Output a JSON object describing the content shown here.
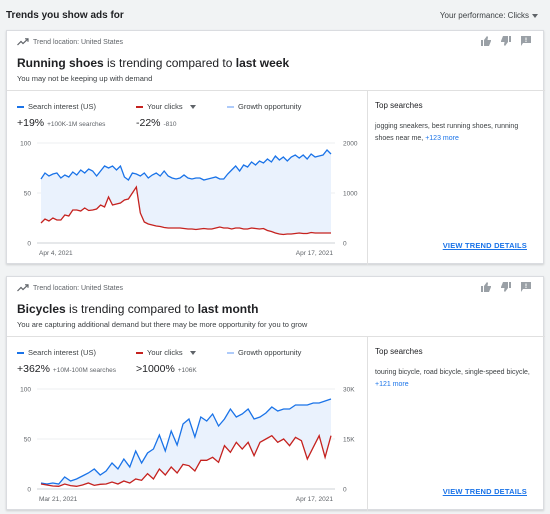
{
  "page": {
    "title": "Trends you show ads for",
    "performance_label": "Your performance: Clicks"
  },
  "colors": {
    "search": "#1a73e8",
    "clicks": "#c5221f",
    "growth": "#aecbfa",
    "growth_fill": "#eaf2fd"
  },
  "icons": [
    "trending-up-icon",
    "thumb-up-icon",
    "thumb-down-icon",
    "feedback-icon",
    "chevron-down-icon"
  ],
  "cards": [
    {
      "location": "Trend location: United States",
      "headline": {
        "subject": "Running shoes",
        "middle": " is trending compared to ",
        "period": "last week"
      },
      "subline": "You may not be keeping up with demand",
      "legend": {
        "search": "Search interest (US)",
        "clicks": "Your clicks",
        "growth": "Growth opportunity"
      },
      "metrics": {
        "search_value": "+19%",
        "search_detail": "+100K-1M searches",
        "clicks_value": "-22%",
        "clicks_detail": "-810"
      },
      "top_searches_title": "Top searches",
      "top_searches_text": "jogging sneakers, best running shoes, running shoes near me,",
      "top_searches_more": "+123 more",
      "details_label": "VIEW TREND DETAILS",
      "chart_data": {
        "type": "line",
        "x_start_label": "Apr 4, 2021",
        "x_end_label": "Apr 17, 2021",
        "left_ticks": [
          "100",
          "50",
          "0"
        ],
        "right_ticks": [
          "2000",
          "1000",
          "0"
        ],
        "ylim_left": [
          0,
          100
        ],
        "ylim_right": [
          0,
          2000
        ],
        "grid": true,
        "series": [
          {
            "name": "Search interest (US)",
            "axis": "left",
            "values": [
              64,
              70,
              67,
              69,
              70,
              65,
              68,
              66,
              71,
              68,
              73,
              70,
              74,
              72,
              67,
              72,
              77,
              75,
              77,
              73,
              77,
              66,
              63,
              70,
              69,
              67,
              70,
              65,
              68,
              70,
              67,
              72,
              67,
              65,
              64,
              65,
              68,
              65,
              64,
              65,
              65,
              63,
              64,
              65,
              66,
              64,
              64,
              69,
              73,
              77,
              72,
              78,
              76,
              81,
              78,
              82,
              80,
              84,
              81,
              87,
              83,
              86,
              82,
              86,
              88,
              85,
              88,
              84,
              89,
              86,
              87,
              88,
              93,
              89
            ]
          },
          {
            "name": "Your clicks",
            "axis": "right",
            "values": [
              400,
              480,
              440,
              500,
              460,
              460,
              560,
              540,
              660,
              660,
              640,
              700,
              650,
              660,
              680,
              760,
              720,
              920,
              760,
              780,
              800,
              860,
              880,
              1000,
              1120,
              600,
              420,
              380,
              360,
              340,
              330,
              310,
              300,
              300,
              300,
              300,
              290,
              280,
              280,
              270,
              280,
              290,
              280,
              280,
              300,
              320,
              300,
              300,
              280,
              300,
              300,
              280,
              280,
              300,
              290,
              280,
              290,
              250,
              230,
              200,
              180,
              170,
              180,
              180,
              190,
              200,
              190,
              190,
              210,
              200,
              200,
              200,
              200,
              200
            ]
          }
        ]
      }
    },
    {
      "location": "Trend location: United States",
      "headline": {
        "subject": "Bicycles",
        "middle": " is trending compared to ",
        "period": "last month"
      },
      "subline": "You are capturing additional demand but there may be more opportunity for you to grow",
      "legend": {
        "search": "Search interest (US)",
        "clicks": "Your clicks",
        "growth": "Growth opportunity"
      },
      "metrics": {
        "search_value": "+362%",
        "search_detail": "+10M-100M searches",
        "clicks_value": ">1000%",
        "clicks_detail": "+106K"
      },
      "top_searches_title": "Top searches",
      "top_searches_text": "touring bicycle, road bicycle, single-speed bicycle,",
      "top_searches_more": "+121 more",
      "details_label": "VIEW TREND DETAILS",
      "chart_data": {
        "type": "line",
        "x_start_label": "Mar 21, 2021",
        "x_end_label": "Apr 17, 2021",
        "left_ticks": [
          "100",
          "50",
          "0"
        ],
        "right_ticks": [
          "30K",
          "15K",
          "0"
        ],
        "ylim_left": [
          0,
          100
        ],
        "ylim_right": [
          0,
          30000
        ],
        "grid": true,
        "series": [
          {
            "name": "Search interest (US)",
            "axis": "left",
            "values": [
              6,
              5,
              6,
              5,
              12,
              8,
              10,
              13,
              16,
              20,
              14,
              18,
              26,
              20,
              30,
              22,
              38,
              26,
              36,
              40,
              54,
              38,
              58,
              44,
              65,
              70,
              52,
              72,
              68,
              75,
              63,
              70,
              80,
              72,
              75,
              80,
              70,
              72,
              76,
              82,
              78,
              80,
              80,
              84,
              84,
              84,
              86,
              86,
              88,
              90
            ]
          },
          {
            "name": "Your clicks",
            "axis": "right",
            "values": [
              1500,
              1200,
              900,
              800,
              1500,
              1000,
              800,
              1200,
              1800,
              1100,
              1400,
              1500,
              2100,
              1500,
              2400,
              1800,
              3000,
              2600,
              4600,
              3000,
              6000,
              4200,
              6600,
              4800,
              7400,
              7000,
              5400,
              8600,
              8600,
              9500,
              8000,
              13000,
              11000,
              14000,
              12000,
              14000,
              10000,
              14000,
              15000,
              16000,
              14000,
              15000,
              13000,
              15500,
              14500,
              9000,
              12500,
              16000,
              9500,
              16000
            ]
          }
        ]
      }
    }
  ]
}
